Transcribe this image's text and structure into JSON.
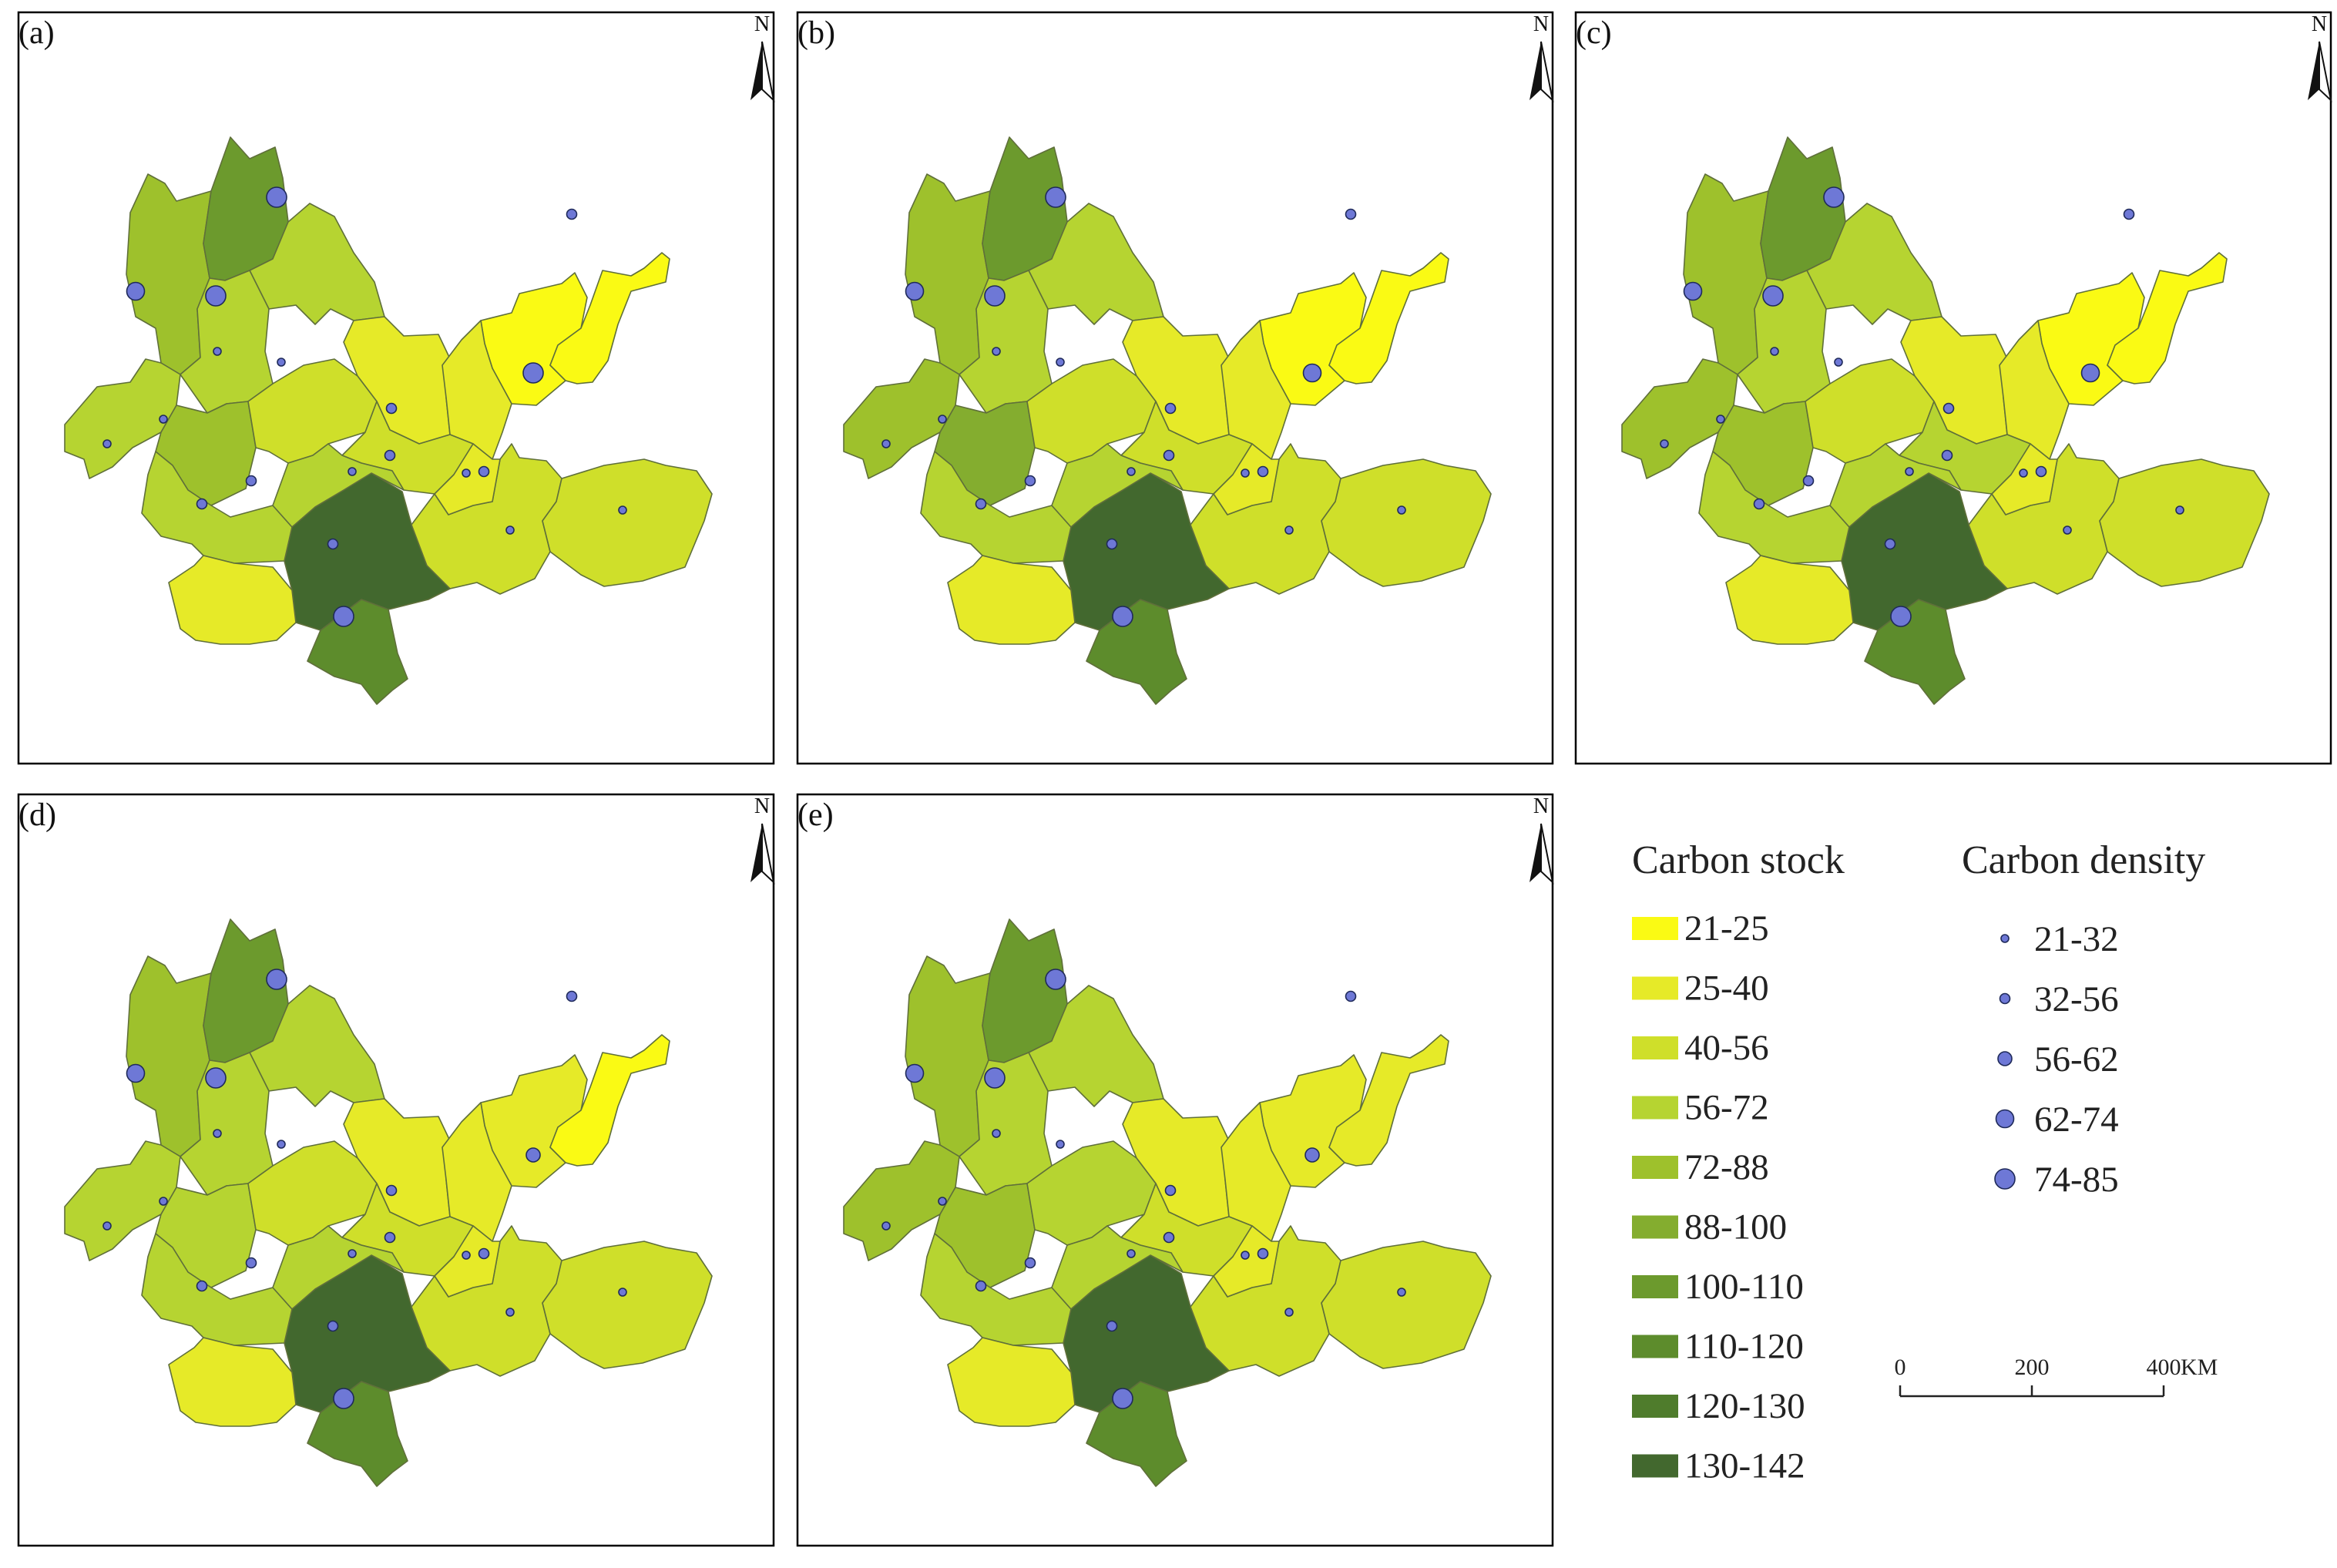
{
  "panels": [
    {
      "label": "(a)",
      "fills": [
        4,
        6,
        3,
        3,
        1,
        0,
        0,
        1,
        3,
        4,
        2,
        2,
        9,
        7,
        3,
        3,
        2,
        1,
        2,
        1
      ],
      "dens": [
        3,
        4,
        0,
        4,
        1,
        4,
        1,
        1,
        0,
        1,
        0,
        1,
        1,
        4,
        1,
        0,
        0,
        0,
        0,
        0
      ]
    },
    {
      "label": "(b)",
      "fills": [
        4,
        6,
        3,
        3,
        1,
        0,
        0,
        1,
        4,
        5,
        2,
        2,
        9,
        7,
        3,
        3,
        2,
        1,
        2,
        1
      ],
      "dens": [
        3,
        4,
        0,
        4,
        1,
        3,
        1,
        1,
        0,
        1,
        0,
        1,
        1,
        4,
        1,
        0,
        0,
        0,
        0,
        0
      ]
    },
    {
      "label": "(c)",
      "fills": [
        4,
        6,
        3,
        3,
        1,
        0,
        0,
        1,
        4,
        4,
        2,
        3,
        9,
        7,
        3,
        3,
        2,
        1,
        2,
        1
      ],
      "dens": [
        3,
        4,
        0,
        4,
        1,
        3,
        1,
        1,
        0,
        1,
        0,
        1,
        1,
        4,
        1,
        0,
        0,
        0,
        0,
        0
      ]
    },
    {
      "label": "(d)",
      "fills": [
        4,
        6,
        3,
        3,
        1,
        1,
        0,
        1,
        3,
        3,
        2,
        2,
        9,
        7,
        3,
        3,
        2,
        1,
        2,
        1
      ],
      "dens": [
        3,
        4,
        0,
        4,
        1,
        2,
        1,
        1,
        0,
        1,
        0,
        1,
        1,
        4,
        1,
        0,
        0,
        0,
        0,
        0
      ]
    },
    {
      "label": "(e)",
      "fills": [
        4,
        6,
        3,
        3,
        1,
        1,
        1,
        1,
        4,
        4,
        3,
        2,
        9,
        7,
        3,
        3,
        2,
        1,
        2,
        1
      ],
      "dens": [
        3,
        4,
        0,
        4,
        1,
        2,
        1,
        1,
        0,
        1,
        0,
        1,
        1,
        4,
        1,
        0,
        0,
        0,
        0,
        0
      ]
    }
  ],
  "north_label": "N",
  "legend": {
    "stock_title": "Carbon stock",
    "density_title": "Carbon density",
    "stock_classes": [
      {
        "label": "21-25",
        "color": "#fafa14"
      },
      {
        "label": "25-40",
        "color": "#e6ea28"
      },
      {
        "label": "40-56",
        "color": "#cfdf2a"
      },
      {
        "label": "56-72",
        "color": "#b6d431"
      },
      {
        "label": "72-88",
        "color": "#9ec12c"
      },
      {
        "label": "88-100",
        "color": "#84ad2f"
      },
      {
        "label": "100-110",
        "color": "#6c9a2d"
      },
      {
        "label": "110-120",
        "color": "#5d8c2c"
      },
      {
        "label": "120-130",
        "color": "#4f7c2c"
      },
      {
        "label": "130-142",
        "color": "#42682e"
      }
    ],
    "density_classes": [
      {
        "label": "21-32"
      },
      {
        "label": "32-56"
      },
      {
        "label": "56-62"
      },
      {
        "label": "62-74"
      },
      {
        "label": "74-85"
      }
    ],
    "density_color": "#6e78d6"
  },
  "scalebar": {
    "ticks": [
      "0",
      "200",
      "400"
    ],
    "unit": "KM"
  }
}
